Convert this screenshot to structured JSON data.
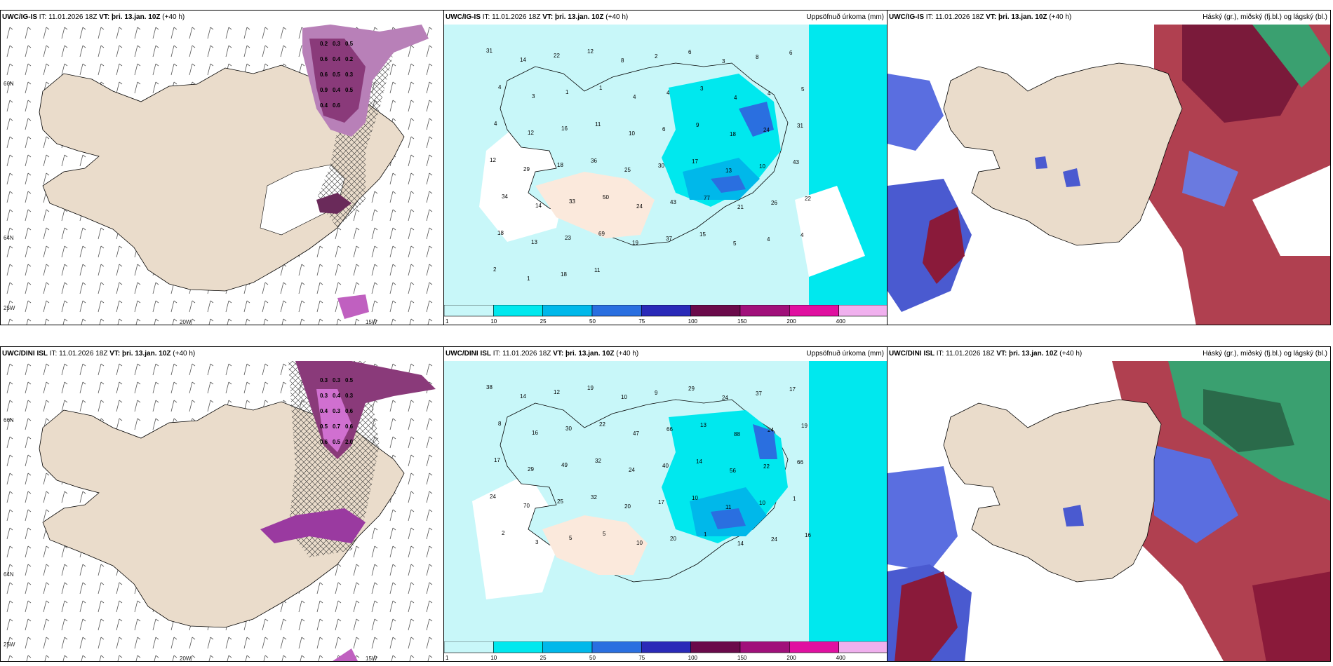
{
  "panels": [
    {
      "model": "UWC/IG-IS",
      "it_label": "IT:",
      "it": "11.01.2026 18Z",
      "vt_label": "VT:",
      "vt": "þri. 13.jan. 10Z",
      "lead": "(+40 h)",
      "right_title": ""
    },
    {
      "model": "UWC/IG-IS",
      "it_label": "IT:",
      "it": "11.01.2026 18Z",
      "vt_label": "VT:",
      "vt": "þri. 13.jan. 10Z",
      "lead": "(+40 h)",
      "right_title": "Uppsöfnuð úrkoma (mm)"
    },
    {
      "model": "UWC/IG-IS",
      "it_label": "IT:",
      "it": "11.01.2026 18Z",
      "vt_label": "VT:",
      "vt": "þri. 13.jan. 10Z",
      "lead": "(+40 h)",
      "right_title": "Háský (gr.), miðský (fj.bl.) og lágský (bl.)"
    },
    {
      "model": "UWC/DINI ISL",
      "it_label": "IT:",
      "it": "11.01.2026 18Z",
      "vt_label": "VT:",
      "vt": "þri. 13.jan. 10Z",
      "lead": "(+40 h)",
      "right_title": ""
    },
    {
      "model": "UWC/DINI ISL",
      "it_label": "IT:",
      "it": "11.01.2026 18Z",
      "vt_label": "VT:",
      "vt": "þri. 13.jan. 10Z",
      "lead": "(+40 h)",
      "right_title": "Uppsöfnuð úrkoma (mm)"
    },
    {
      "model": "UWC/DINI ISL",
      "it_label": "IT:",
      "it": "11.01.2026 18Z",
      "vt_label": "VT:",
      "vt": "þri. 13.jan. 10Z",
      "lead": "(+40 h)",
      "right_title": "Háský (gr.), miðský (fj.bl.) og lágský (bl.)"
    }
  ],
  "axis_labels": {
    "lat66": "66N",
    "lat64": "64N",
    "lon25": "25W",
    "lon20": "20W",
    "lon15": "15W"
  },
  "colorbar": {
    "ticks": [
      "1",
      "10",
      "25",
      "50",
      "75",
      "100",
      "150",
      "200",
      "400"
    ],
    "colors": [
      "#c8f7f9",
      "#00e8ee",
      "#00b8ea",
      "#2a6fe0",
      "#2a2ab8",
      "#6a0a4a",
      "#a0107a",
      "#e010a0",
      "#f0b0ee"
    ]
  },
  "precip_top": [
    "31",
    "14",
    "22",
    "12",
    "8",
    "2",
    "6",
    "3",
    "8",
    "6",
    "4",
    "3",
    "1",
    "1",
    "4",
    "4",
    "3",
    "4",
    "4",
    "5",
    "4",
    "12",
    "16",
    "11",
    "10",
    "6",
    "9",
    "18",
    "24",
    "31",
    "12",
    "29",
    "18",
    "36",
    "25",
    "30",
    "17",
    "13",
    "10",
    "43",
    "34",
    "14",
    "33",
    "50",
    "24",
    "43",
    "77",
    "21",
    "26",
    "22",
    "18",
    "13",
    "23",
    "69",
    "19",
    "37",
    "15",
    "5",
    "4",
    "4",
    "2",
    "1",
    "18",
    "11"
  ],
  "precip_bottom": [
    "38",
    "14",
    "12",
    "19",
    "10",
    "9",
    "29",
    "24",
    "37",
    "17",
    "8",
    "16",
    "30",
    "22",
    "47",
    "66",
    "13",
    "88",
    "24",
    "19",
    "17",
    "29",
    "49",
    "32",
    "24",
    "40",
    "14",
    "56",
    "22",
    "66",
    "24",
    "70",
    "25",
    "32",
    "20",
    "17",
    "10",
    "11",
    "10",
    "1",
    "2",
    "3",
    "5",
    "5",
    "10",
    "20",
    "1",
    "14",
    "24",
    "16"
  ],
  "rain_top": [
    "0.2",
    "0.3",
    "0.5",
    "0.6",
    "0.4",
    "0.2",
    "0.6",
    "0.5",
    "0.3",
    "0.9",
    "0.4",
    "0.5",
    "0.4",
    "0.6"
  ],
  "rain_bottom": [
    "0.3",
    "0.3",
    "0.5",
    "0.3",
    "0.4",
    "0.3",
    "0.4",
    "0.3",
    "0.6",
    "0.5",
    "0.7",
    "0.6",
    "0.6",
    "0.5",
    "2.0"
  ]
}
